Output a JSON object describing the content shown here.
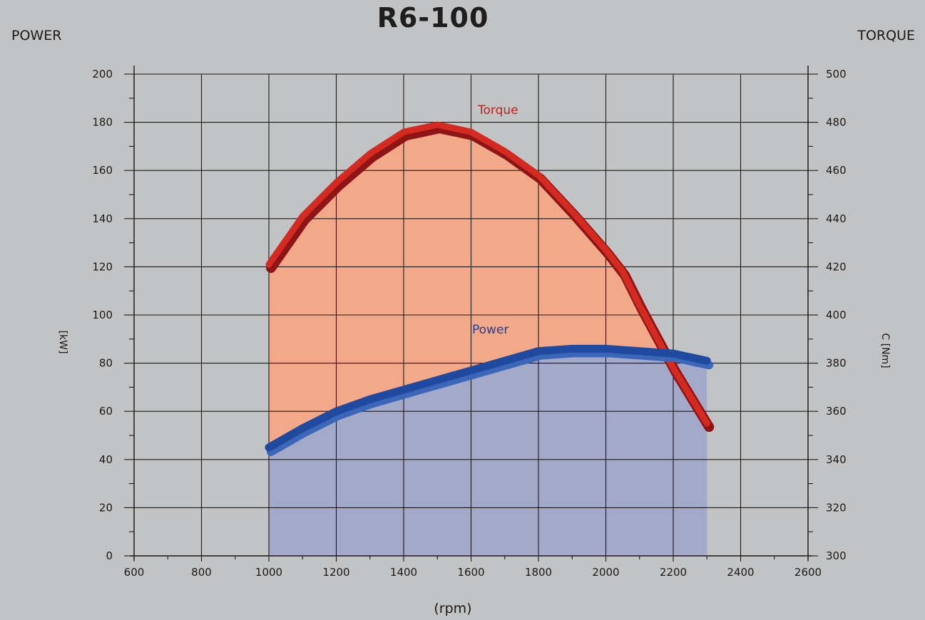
{
  "chart_data": {
    "type": "area",
    "title": "R6-100",
    "left_header": "POWER",
    "right_header": "TORQUE",
    "xlabel": "(rpm)",
    "ylabel_left": "[kW]",
    "ylabel_right": "C [Nm]",
    "xlim": [
      600,
      2600
    ],
    "xticks": [
      600,
      800,
      1000,
      1200,
      1400,
      1600,
      1800,
      2000,
      2200,
      2400,
      2600
    ],
    "ylim_left": [
      0,
      200
    ],
    "yticks_left": [
      0,
      20,
      40,
      60,
      80,
      100,
      120,
      140,
      160,
      180,
      200
    ],
    "ylim_right": [
      300,
      500
    ],
    "yticks_right": [
      300,
      320,
      340,
      360,
      380,
      400,
      420,
      440,
      460,
      480,
      500
    ],
    "grid": true,
    "series": [
      {
        "name": "Torque",
        "axis": "right",
        "color": "#d42a22",
        "fill": "#f4a88a",
        "x": [
          1000,
          1100,
          1200,
          1300,
          1400,
          1500,
          1600,
          1700,
          1800,
          1900,
          2000,
          2050,
          2100,
          2200,
          2300
        ],
        "values": [
          421,
          441,
          455,
          467,
          476,
          479,
          476,
          468,
          458,
          443,
          427,
          418,
          404,
          378,
          355
        ]
      },
      {
        "name": "Power",
        "axis": "left",
        "color": "#1f4aa0",
        "fill": "#a5a9c9",
        "x": [
          1000,
          1100,
          1200,
          1300,
          1400,
          1500,
          1600,
          1700,
          1800,
          1900,
          2000,
          2100,
          2200,
          2300
        ],
        "values": [
          45,
          53,
          60,
          65,
          69,
          73,
          77,
          81,
          85,
          86,
          86,
          85,
          84,
          81
        ]
      }
    ]
  }
}
